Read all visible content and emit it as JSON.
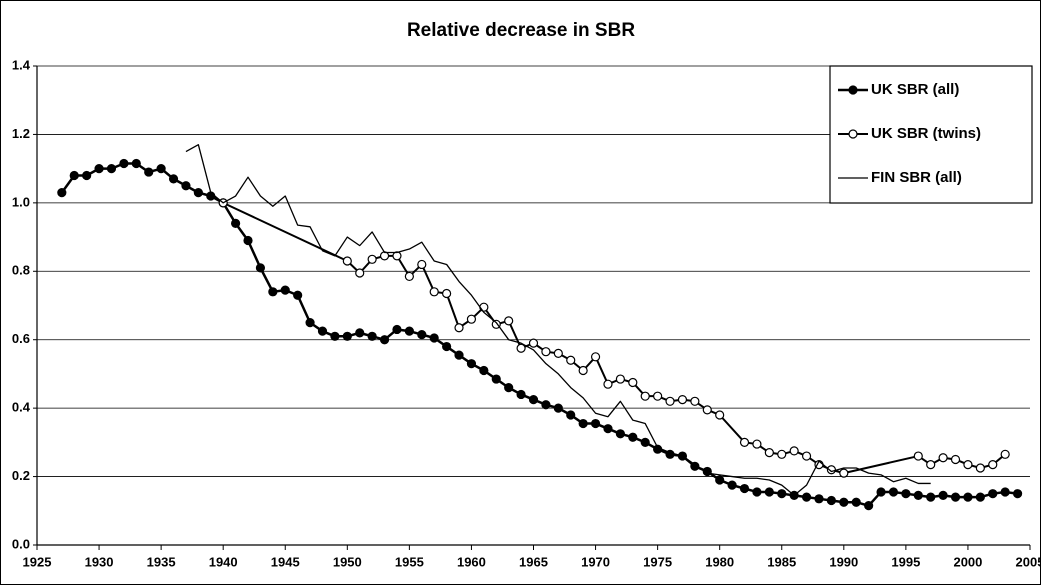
{
  "chart_data": {
    "type": "line",
    "title": "Relative decrease in SBR",
    "xlim": [
      1925,
      2005
    ],
    "xticks": [
      1925,
      1930,
      1935,
      1940,
      1945,
      1950,
      1955,
      1960,
      1965,
      1970,
      1975,
      1980,
      1985,
      1990,
      1995,
      2000,
      2005
    ],
    "ylim": [
      0,
      1.4
    ],
    "yticks": [
      {
        "value": 0,
        "label": "0.0"
      },
      0.2,
      0.4,
      0.6,
      0.8,
      {
        "value": 1,
        "label": "1.0"
      },
      1.2,
      1.4
    ],
    "grid": true,
    "legend": "top-right",
    "series": [
      {
        "name": "UK SBR (all)",
        "color": "#000000",
        "marker": "filled",
        "line_width": 2.5,
        "x": [
          1927,
          1928,
          1929,
          1930,
          1931,
          1932,
          1933,
          1934,
          1935,
          1936,
          1937,
          1938,
          1939,
          1940,
          1941,
          1942,
          1943,
          1944,
          1945,
          1946,
          1947,
          1948,
          1949,
          1950,
          1951,
          1952,
          1953,
          1954,
          1955,
          1956,
          1957,
          1958,
          1959,
          1960,
          1961,
          1962,
          1963,
          1964,
          1965,
          1966,
          1967,
          1968,
          1969,
          1970,
          1971,
          1972,
          1973,
          1974,
          1975,
          1976,
          1977,
          1978,
          1979,
          1980,
          1981,
          1982,
          1983,
          1984,
          1985,
          1986,
          1987,
          1988,
          1989,
          1990,
          1991,
          1992,
          1993,
          1994,
          1995,
          1996,
          1997,
          1998,
          1999,
          2000,
          2001,
          2002,
          2003,
          2004
        ],
        "values": [
          1.03,
          1.08,
          1.08,
          1.1,
          1.1,
          1.115,
          1.115,
          1.09,
          1.1,
          1.07,
          1.05,
          1.03,
          1.02,
          1.0,
          0.94,
          0.89,
          0.81,
          0.74,
          0.745,
          0.73,
          0.65,
          0.625,
          0.61,
          0.61,
          0.62,
          0.61,
          0.6,
          0.63,
          0.625,
          0.615,
          0.605,
          0.58,
          0.555,
          0.53,
          0.51,
          0.485,
          0.46,
          0.44,
          0.425,
          0.41,
          0.4,
          0.38,
          0.355,
          0.355,
          0.34,
          0.325,
          0.315,
          0.3,
          0.28,
          0.265,
          0.26,
          0.23,
          0.215,
          0.19,
          0.175,
          0.165,
          0.155,
          0.155,
          0.15,
          0.145,
          0.14,
          0.135,
          0.13,
          0.125,
          0.125,
          0.115,
          0.155,
          0.155,
          0.15,
          0.145,
          0.14,
          0.145,
          0.14,
          0.14,
          0.14,
          0.15,
          0.155,
          0.15
        ]
      },
      {
        "name": "UK SBR (twins)",
        "color": "#000000",
        "marker": "open",
        "line_width": 2,
        "x": [
          1940,
          1950,
          1951,
          1952,
          1953,
          1954,
          1955,
          1956,
          1957,
          1958,
          1959,
          1960,
          1961,
          1962,
          1963,
          1964,
          1965,
          1966,
          1967,
          1968,
          1969,
          1970,
          1971,
          1972,
          1973,
          1974,
          1975,
          1976,
          1977,
          1978,
          1979,
          1980,
          1982,
          1983,
          1984,
          1985,
          1986,
          1987,
          1988,
          1989,
          1990,
          1996,
          1997,
          1998,
          1999,
          2000,
          2001,
          2002,
          2003
        ],
        "values": [
          1.0,
          0.83,
          0.795,
          0.835,
          0.845,
          0.845,
          0.785,
          0.82,
          0.74,
          0.735,
          0.635,
          0.66,
          0.695,
          0.645,
          0.655,
          0.575,
          0.59,
          0.565,
          0.56,
          0.54,
          0.51,
          0.55,
          0.47,
          0.485,
          0.475,
          0.435,
          0.435,
          0.42,
          0.425,
          0.42,
          0.395,
          0.38,
          0.3,
          0.295,
          0.27,
          0.265,
          0.275,
          0.26,
          0.235,
          0.22,
          0.21,
          0.26,
          0.235,
          0.255,
          0.25,
          0.235,
          0.225,
          0.235,
          0.265
        ]
      },
      {
        "name": "FIN SBR (all)",
        "color": "#000000",
        "marker": "none",
        "line_width": 1.3,
        "x": [
          1937,
          1938,
          1939,
          1940,
          1941,
          1942,
          1943,
          1944,
          1945,
          1946,
          1947,
          1948,
          1949,
          1950,
          1951,
          1952,
          1953,
          1954,
          1955,
          1956,
          1957,
          1958,
          1959,
          1960,
          1961,
          1962,
          1963,
          1964,
          1965,
          1966,
          1967,
          1968,
          1969,
          1970,
          1971,
          1972,
          1973,
          1974,
          1975,
          1976,
          1977,
          1978,
          1979,
          1980,
          1981,
          1982,
          1983,
          1984,
          1985,
          1986,
          1987,
          1988,
          1989,
          1990,
          1991,
          1992,
          1993,
          1994,
          1995,
          1996,
          1997
        ],
        "values": [
          1.15,
          1.17,
          1.03,
          1.0,
          1.02,
          1.075,
          1.02,
          0.99,
          1.02,
          0.935,
          0.93,
          0.86,
          0.845,
          0.9,
          0.875,
          0.915,
          0.855,
          0.855,
          0.865,
          0.885,
          0.83,
          0.82,
          0.77,
          0.73,
          0.68,
          0.65,
          0.6,
          0.59,
          0.57,
          0.53,
          0.5,
          0.46,
          0.43,
          0.385,
          0.375,
          0.42,
          0.365,
          0.355,
          0.285,
          0.27,
          0.26,
          0.235,
          0.21,
          0.205,
          0.2,
          0.195,
          0.195,
          0.19,
          0.175,
          0.145,
          0.175,
          0.245,
          0.215,
          0.225,
          0.225,
          0.21,
          0.205,
          0.185,
          0.195,
          0.18,
          0.18
        ]
      }
    ]
  }
}
